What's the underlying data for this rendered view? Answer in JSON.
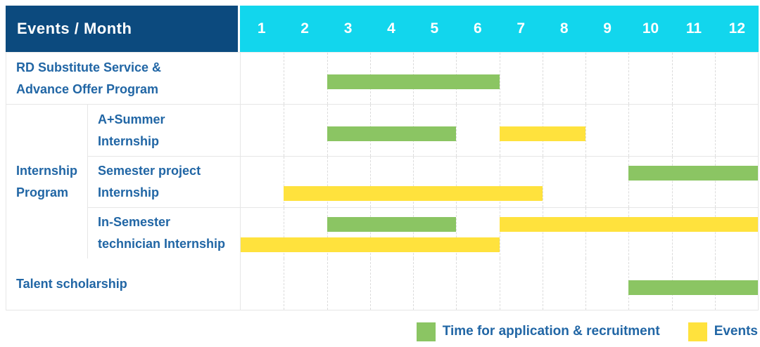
{
  "colors": {
    "navy": "#0C4A7E",
    "cyan": "#12D6ED",
    "label_blue": "#2166A5",
    "green": "#8BC563",
    "yellow": "#FFE23D"
  },
  "header": {
    "title": "Events / Month",
    "months": [
      "1",
      "2",
      "3",
      "4",
      "5",
      "6",
      "7",
      "8",
      "9",
      "10",
      "11",
      "12"
    ]
  },
  "rows": {
    "rd": {
      "label": "RD Substitute Service &\nAdvance Offer Program",
      "bars": [
        {
          "color": "green",
          "start": 3,
          "end": 6,
          "lane": "mid"
        }
      ]
    },
    "internship_group_label": "Internship\nProgram",
    "a_summer": {
      "label": "A+Summer\nInternship",
      "bars": [
        {
          "color": "green",
          "start": 3,
          "end": 5,
          "lane": "mid"
        },
        {
          "color": "yellow",
          "start": 7,
          "end": 8,
          "lane": "mid"
        }
      ]
    },
    "semester_project": {
      "label": "Semester project\nInternship",
      "bars": [
        {
          "color": "green",
          "start": 10,
          "end": 12,
          "lane": "top"
        },
        {
          "color": "yellow",
          "start": 2,
          "end": 7,
          "lane": "bottom"
        }
      ]
    },
    "in_semester": {
      "label": "In-Semester\ntechnician Internship",
      "bars": [
        {
          "color": "green",
          "start": 3,
          "end": 5,
          "lane": "top"
        },
        {
          "color": "yellow",
          "start": 7,
          "end": 12,
          "lane": "top"
        },
        {
          "color": "yellow",
          "start": 1,
          "end": 6,
          "lane": "bottom"
        }
      ]
    },
    "talent": {
      "label": "Talent scholarship",
      "bars": [
        {
          "color": "green",
          "start": 10,
          "end": 12,
          "lane": "mid"
        }
      ]
    }
  },
  "legend": {
    "application": {
      "label": "Time for application & recruitment",
      "color": "#8BC563"
    },
    "events": {
      "label": "Events",
      "color": "#FFE23D"
    }
  },
  "chart_data": {
    "type": "bar",
    "subtype": "gantt",
    "title": "Events / Month",
    "x_axis": {
      "label": "Month",
      "ticks": [
        1,
        2,
        3,
        4,
        5,
        6,
        7,
        8,
        9,
        10,
        11,
        12
      ],
      "range": [
        1,
        12
      ]
    },
    "legend": [
      "Time for application & recruitment",
      "Events"
    ],
    "legend_position": "bottom-right",
    "grid": "vertical-dashed",
    "rows": [
      {
        "group": null,
        "label": "RD Substitute Service & Advance Offer Program",
        "spans": [
          {
            "series": "Time for application & recruitment",
            "start_month": 3,
            "end_month": 6
          }
        ]
      },
      {
        "group": "Internship Program",
        "label": "A+Summer Internship",
        "spans": [
          {
            "series": "Time for application & recruitment",
            "start_month": 3,
            "end_month": 5
          },
          {
            "series": "Events",
            "start_month": 7,
            "end_month": 8
          }
        ]
      },
      {
        "group": "Internship Program",
        "label": "Semester project Internship",
        "spans": [
          {
            "series": "Time for application & recruitment",
            "start_month": 10,
            "end_month": 12
          },
          {
            "series": "Events",
            "start_month": 2,
            "end_month": 7
          }
        ]
      },
      {
        "group": "Internship Program",
        "label": "In-Semester technician Internship",
        "spans": [
          {
            "series": "Time for application & recruitment",
            "start_month": 3,
            "end_month": 5
          },
          {
            "series": "Events",
            "start_month": 7,
            "end_month": 12
          },
          {
            "series": "Events",
            "start_month": 1,
            "end_month": 6
          }
        ]
      },
      {
        "group": null,
        "label": "Talent scholarship",
        "spans": [
          {
            "series": "Time for application & recruitment",
            "start_month": 10,
            "end_month": 12
          }
        ]
      }
    ]
  }
}
